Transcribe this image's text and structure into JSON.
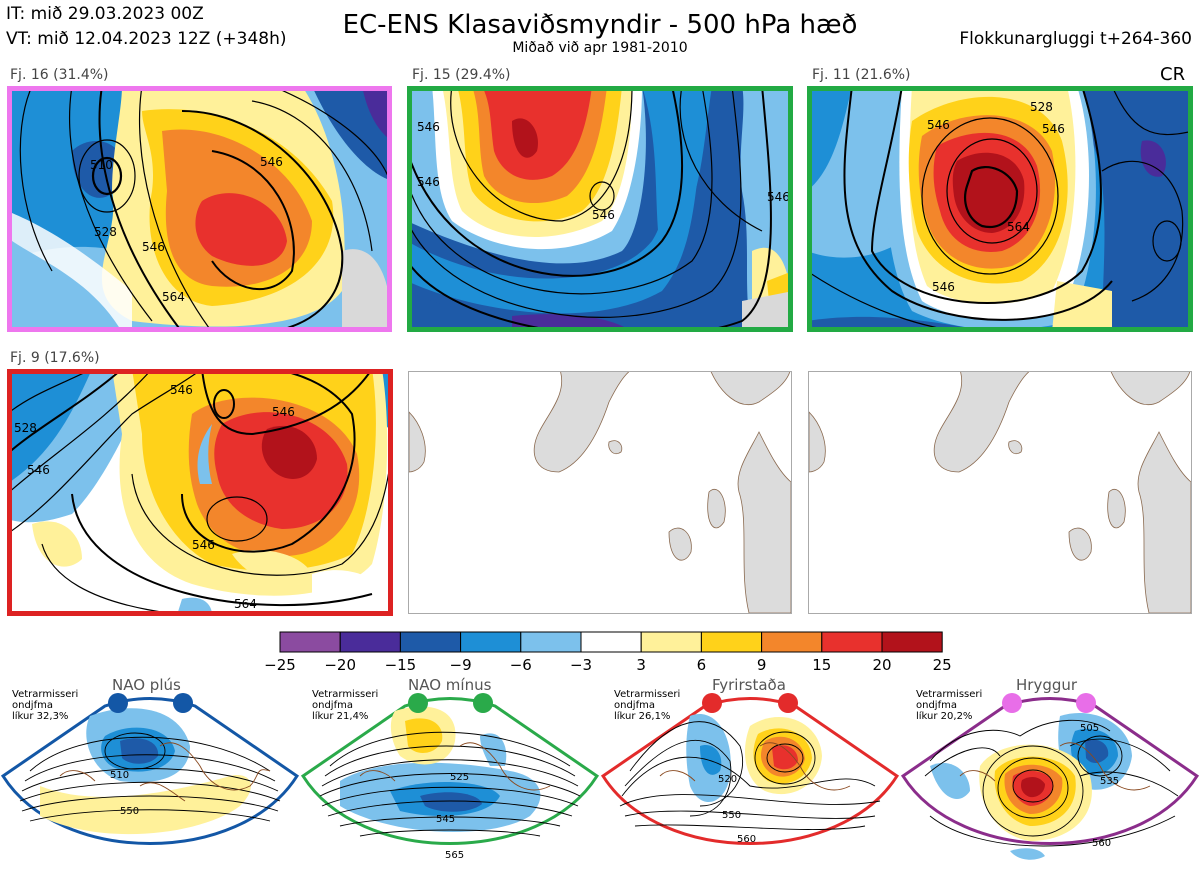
{
  "header": {
    "it": "IT: mið 29.03.2023 00Z",
    "vt": "VT: mið 12.04.2023 12Z  (+348h)",
    "title": "EC-ENS Klasaviðsmyndir - 500 hPa hæð",
    "subtitle": "Miðað við apr 1981-2010",
    "window": "Flokkunargluggi t+264-360",
    "cr": "CR"
  },
  "panels": [
    {
      "label": "Fj. 16 (31.4%)",
      "border": "#ee77ee",
      "contours": [
        "510",
        "528",
        "546",
        "546",
        "564"
      ]
    },
    {
      "label": "Fj. 15 (29.4%)",
      "border": "#22aa44",
      "contours": [
        "546",
        "546",
        "546",
        "546"
      ]
    },
    {
      "label": "Fj. 11 (21.6%)",
      "border": "#22aa44",
      "contours": [
        "528",
        "546",
        "546",
        "546",
        "564"
      ]
    },
    {
      "label": "Fj. 9 (17.6%)",
      "border": "#dd2222",
      "contours": [
        "528",
        "546",
        "546",
        "546",
        "546",
        "564"
      ]
    }
  ],
  "colorbar": {
    "ticks": [
      "−25",
      "−20",
      "−15",
      "−9",
      "−6",
      "−3",
      "3",
      "6",
      "9",
      "15",
      "20",
      "25"
    ],
    "colors": [
      "#8b4ba0",
      "#4a2c9a",
      "#1e5aa8",
      "#1e8fd6",
      "#7cc1ec",
      "#ffffff",
      "#fff19a",
      "#ffd21a",
      "#f3862b",
      "#e8312d",
      "#b2121b"
    ]
  },
  "regimes": [
    {
      "title": "NAO plús",
      "season": "Vetrarmisseri",
      "stat": "ondjfma",
      "prob": "líkur 32,3%",
      "color": "#1357a6",
      "labels": [
        "510",
        "550"
      ]
    },
    {
      "title": "NAO mínus",
      "season": "Vetrarmisseri",
      "stat": "ondjfma",
      "prob": "líkur 21,4%",
      "color": "#2aaa4a",
      "labels": [
        "525",
        "545",
        "565"
      ]
    },
    {
      "title": "Fyrirstaða",
      "season": "Vetrarmisseri",
      "stat": "ondjfma",
      "prob": "líkur 26,1%",
      "color": "#e32b2b",
      "labels": [
        "520",
        "550",
        "560"
      ]
    },
    {
      "title": "Hryggur",
      "season": "Vetrarmisseri",
      "stat": "ondjfma",
      "prob": "líkur 20,2%",
      "color": "#e86ee8",
      "labels": [
        "505",
        "535",
        "560"
      ]
    }
  ]
}
